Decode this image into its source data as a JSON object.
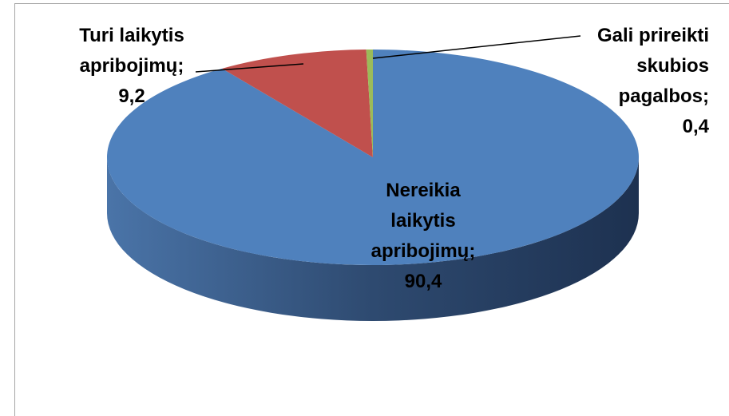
{
  "chart_data": {
    "type": "pie",
    "three_d": true,
    "categories": [
      "Nereikia laikytis apribojimų",
      "Turi laikytis apribojimų",
      "Gali prireikti skubios pagalbos"
    ],
    "values": [
      90.4,
      9.2,
      0.4
    ],
    "value_labels": [
      "90,4",
      "9,2",
      "0,4"
    ],
    "label_separator": ";",
    "colors": [
      "#4f81bd",
      "#c0504d",
      "#9bbb59"
    ]
  }
}
